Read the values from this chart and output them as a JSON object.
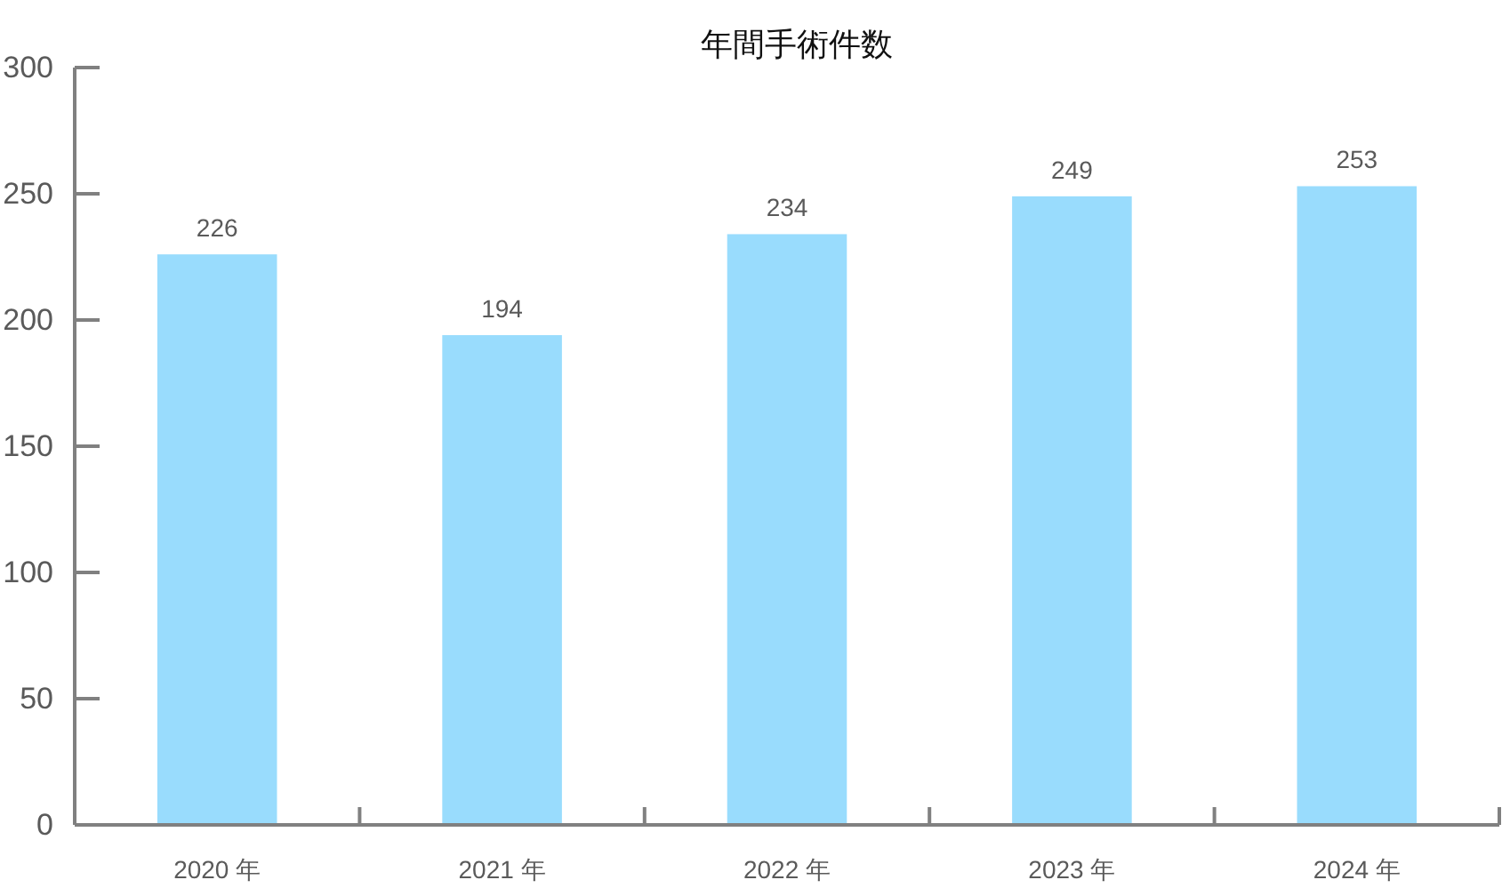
{
  "chart_data": {
    "type": "bar",
    "title": "年間手術件数",
    "categories": [
      "2020 年",
      "2021 年",
      "2022 年",
      "2023 年",
      "2024 年"
    ],
    "values": [
      226,
      194,
      234,
      249,
      253
    ],
    "color": "#99dcfd",
    "ylim": [
      0,
      300
    ],
    "yticks": [
      0,
      50,
      100,
      150,
      200,
      250,
      300
    ],
    "data_labels": true,
    "grid": false
  }
}
